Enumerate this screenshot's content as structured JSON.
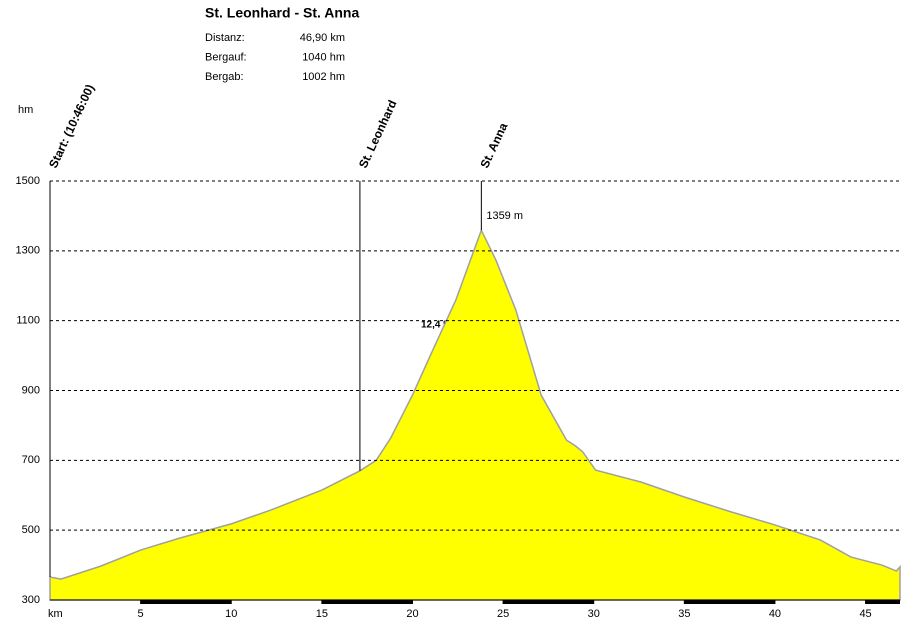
{
  "chart_data": {
    "type": "area",
    "title": "St. Leonhard - St. Anna",
    "stats": [
      {
        "label": "Distanz:",
        "value": "46,90 km"
      },
      {
        "label": "Bergauf:",
        "value": "1040 hm"
      },
      {
        "label": "Bergab:",
        "value": "1002 hm"
      }
    ],
    "y_label": "hm",
    "x_label": "km",
    "x": [
      0,
      0.6,
      2.8,
      5,
      7.2,
      10,
      12.2,
      15,
      17.1,
      18,
      18.8,
      20,
      21,
      22.4,
      23.2,
      23.8,
      24.6,
      25.7,
      27.1,
      28.5,
      29,
      29.4,
      30.1,
      32.6,
      35,
      37.6,
      40,
      42.5,
      44.2,
      45.9,
      46.7,
      46.9
    ],
    "values": [
      366,
      360,
      397,
      443,
      478,
      518,
      558,
      615,
      670,
      700,
      764,
      887,
      1002,
      1160,
      1274,
      1359,
      1274,
      1131,
      887,
      758,
      741,
      724,
      672,
      638,
      595,
      552,
      515,
      472,
      423,
      400,
      383,
      395
    ],
    "fill_color": "#ffff00",
    "line_color": "#a0a0a0",
    "xlim": [
      0,
      46.9
    ],
    "xticks": [
      5,
      10,
      15,
      20,
      25,
      30,
      35,
      40,
      45
    ],
    "ylim": [
      300,
      1500
    ],
    "yticks": [
      300,
      500,
      700,
      900,
      1100,
      1300,
      1500
    ],
    "grid": true,
    "waypoints": [
      {
        "name": "Start: (10:46:00)",
        "x": 0
      },
      {
        "name": "St. Leonhard",
        "x": 17.1
      },
      {
        "name": "St. Anna",
        "x": 23.8
      }
    ],
    "peak_label": {
      "x": 23.8,
      "value": 1359,
      "label": "1359 m",
      "color": "#c0304a"
    },
    "gradient_label": "12,4 %"
  }
}
